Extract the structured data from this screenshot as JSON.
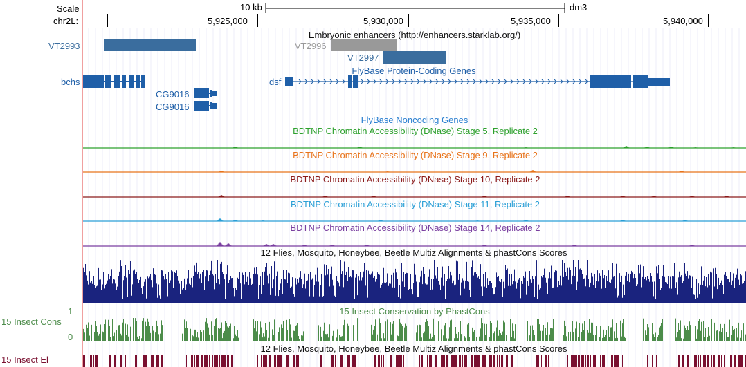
{
  "header": {
    "scale_label": "Scale",
    "scale_value": "10 kb",
    "assembly": "dm3",
    "chrom_label": "chr2L:",
    "ticks": [
      "5,925,000",
      "5,930,000",
      "5,935,000",
      "5,940,000"
    ]
  },
  "tracks": {
    "enhancers": {
      "title": "Embryonic enhancers (http://enhancers.starklab.org/)",
      "items": [
        "VT2993",
        "VT2996",
        "VT2997"
      ]
    },
    "genes": {
      "title": "FlyBase Protein-Coding Genes",
      "items": [
        "bchs",
        "dsf",
        "CG9016",
        "CG9016"
      ]
    },
    "noncoding": {
      "title": "FlyBase Noncoding Genes"
    },
    "dnase": [
      {
        "title": "BDTNP Chromatin Accessibility (DNase) Stage 5, Replicate 2",
        "color": "#2ca02c"
      },
      {
        "title": "BDTNP Chromatin Accessibility (DNase) Stage 9, Replicate 2",
        "color": "#e8731a"
      },
      {
        "title": "BDTNP Chromatin Accessibility (DNase) Stage 10, Replicate 2",
        "color": "#8b1a1a"
      },
      {
        "title": "BDTNP Chromatin Accessibility (DNase) Stage 11, Replicate 2",
        "color": "#2a9fd6"
      },
      {
        "title": "BDTNP Chromatin Accessibility (DNase) Stage 14, Replicate 2",
        "color": "#7a3fa0"
      }
    ],
    "multiz": {
      "title": "12 Flies, Mosquito, Honeybee, Beetle Multiz Alignments & phastCons Scores"
    },
    "conservation": {
      "title": "15 Insect Conservation by PhastCons",
      "side_label": "15 Insect Cons",
      "axis_max": "1",
      "axis_min": "0"
    },
    "elements": {
      "title": "12 Flies, Mosquito, Honeybee, Beetle Multiz Alignments & phastCons Scores",
      "side_label": "15 Insect El"
    }
  },
  "colors": {
    "gene_blue": "#1f5fa8",
    "enhancer_blue": "#3a6d9e",
    "enhancer_gray": "#999999",
    "multiz_navy": "#1a237e",
    "cons_green": "#4c8c4a",
    "elements_maroon": "#7a1030",
    "guide_line": "#c8c8f0",
    "left_border": "#f0a0a0"
  }
}
